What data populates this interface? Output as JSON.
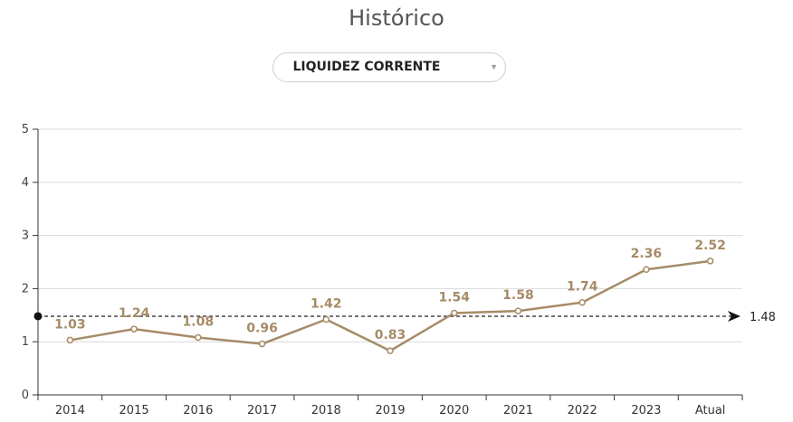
{
  "header": {
    "title": "Histórico",
    "indicator_select": {
      "selected": "LIQUIDEZ CORRENTE"
    }
  },
  "chart_data": {
    "type": "line",
    "categories": [
      "2014",
      "2015",
      "2016",
      "2017",
      "2018",
      "2019",
      "2020",
      "2021",
      "2022",
      "2023",
      "Atual"
    ],
    "values": [
      1.03,
      1.24,
      1.08,
      0.96,
      1.42,
      0.83,
      1.54,
      1.58,
      1.74,
      2.36,
      2.52
    ],
    "data_labels": [
      "1.03",
      "1.24",
      "1.08",
      "0.96",
      "1.42",
      "0.83",
      "1.54",
      "1.58",
      "1.74",
      "2.36",
      "2.52"
    ],
    "ylim": [
      0,
      5
    ],
    "yticks": [
      0,
      1,
      2,
      3,
      4,
      5
    ],
    "grid": true,
    "reference_line": {
      "value": 1.48,
      "label": "1.48"
    },
    "colors": {
      "line": "#a68b67",
      "label": "#a68b67",
      "grid": "#d9d9d9",
      "axis": "#333333"
    }
  }
}
